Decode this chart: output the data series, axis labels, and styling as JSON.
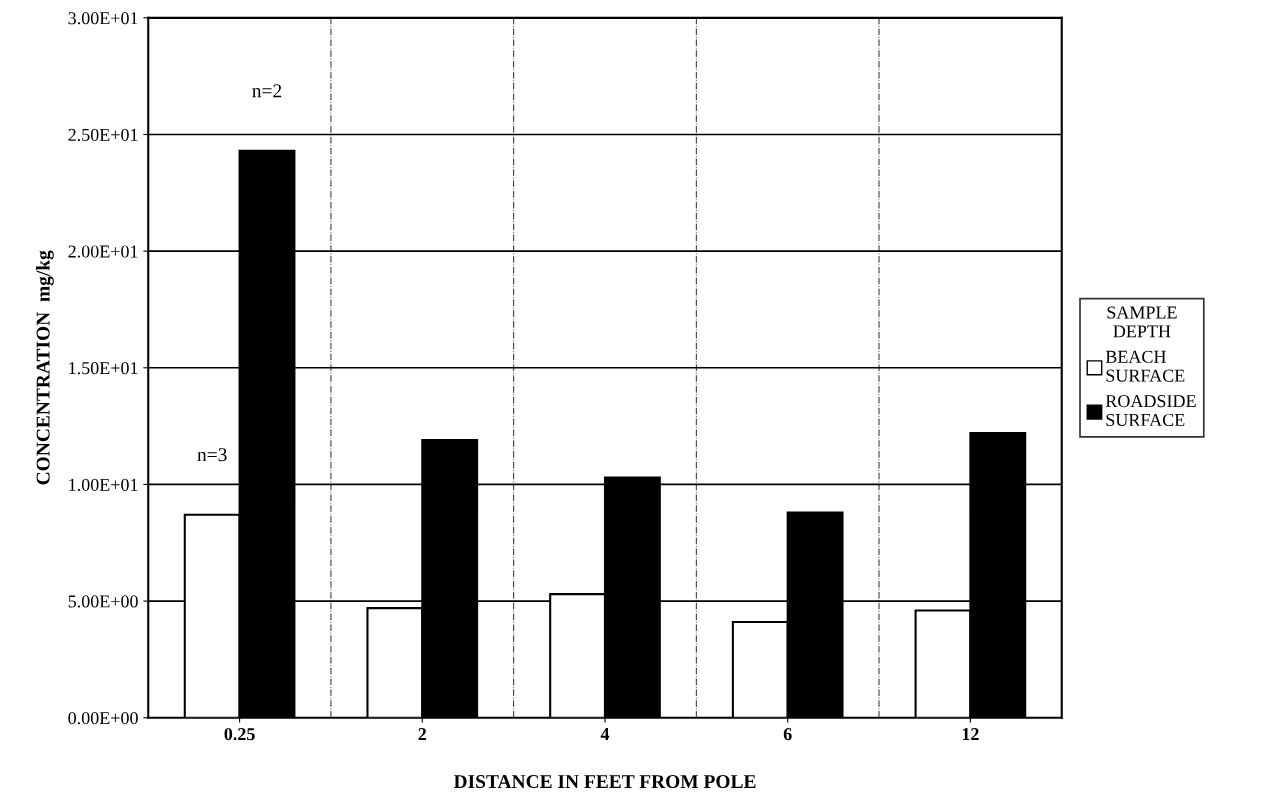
{
  "chart_data": {
    "type": "bar",
    "xlabel": "DISTANCE IN FEET FROM POLE",
    "ylabel": "CONCENTRATION  mg/kg",
    "legend_title": "SAMPLE\nDEPTH",
    "categories": [
      "0.25",
      "2",
      "4",
      "6",
      "12"
    ],
    "series": [
      {
        "name": "BEACH\nSURFACE",
        "color": "#ffffff",
        "values": [
          8.7,
          4.7,
          5.3,
          4.1,
          4.6
        ]
      },
      {
        "name": "ROADSIDE\nSURFACE",
        "color": "#000000",
        "values": [
          24.3,
          11.9,
          10.3,
          8.8,
          12.2
        ]
      }
    ],
    "ylim": [
      0,
      30
    ],
    "yticks": [
      {
        "value": 0,
        "label": "0.00E+00"
      },
      {
        "value": 5,
        "label": "5.00E+00"
      },
      {
        "value": 10,
        "label": "1.00E+01"
      },
      {
        "value": 15,
        "label": "1.50E+01"
      },
      {
        "value": 20,
        "label": "2.00E+01"
      },
      {
        "value": 25,
        "label": "2.50E+01"
      },
      {
        "value": 30,
        "label": "3.00E+01"
      }
    ],
    "annotations": [
      "n=3",
      "n=2"
    ],
    "grid": true,
    "legend": "right"
  }
}
